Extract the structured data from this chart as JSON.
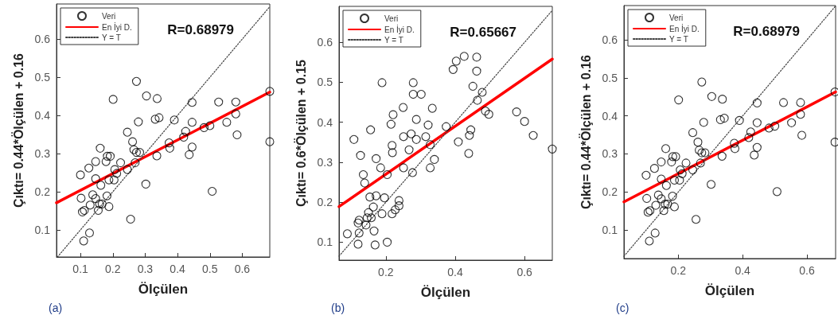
{
  "chart_data": [
    {
      "type": "scatter",
      "xlabel": "Ölçülen",
      "ylabel": "Çıktı= 0.44*Ölçülen + 0.16",
      "annotations": [
        "R=0.68979",
        "(a)"
      ],
      "xlim": [
        0.026,
        0.685
      ],
      "ylim": [
        0.029,
        0.692
      ],
      "xticks": [
        0.1,
        0.2,
        0.3,
        0.4,
        0.5,
        0.6
      ],
      "yticks": [
        0.1,
        0.2,
        0.3,
        0.4,
        0.5,
        0.6
      ],
      "grid": false,
      "legend": "top left",
      "series": [
        {
          "name": "Veri",
          "type": "scatter",
          "marker": "circle",
          "color": "#000000",
          "x": [
            0.685,
            0.685,
            0.273,
            0.201,
            0.304,
            0.337,
            0.331,
            0.343,
            0.279,
            0.39,
            0.445,
            0.445,
            0.527,
            0.58,
            0.58,
            0.584,
            0.552,
            0.5,
            0.482,
            0.425,
            0.419,
            0.445,
            0.436,
            0.374,
            0.376,
            0.336,
            0.302,
            0.507,
            0.255,
            0.245,
            0.261,
            0.265,
            0.273,
            0.283,
            0.269,
            0.245,
            0.224,
            0.212,
            0.206,
            0.183,
            0.192,
            0.179,
            0.161,
            0.147,
            0.126,
            0.1,
            0.147,
            0.163,
            0.188,
            0.204,
            0.138,
            0.147,
            0.102,
            0.13,
            0.159,
            0.182,
            0.188,
            0.155,
            0.106,
            0.112,
            0.167,
            0.128,
            0.11
          ],
          "values": [
            0.463,
            0.331,
            0.489,
            0.442,
            0.451,
            0.444,
            0.39,
            0.394,
            0.383,
            0.388,
            0.434,
            0.382,
            0.435,
            0.435,
            0.404,
            0.349,
            0.382,
            0.373,
            0.368,
            0.358,
            0.343,
            0.317,
            0.297,
            0.328,
            0.314,
            0.294,
            0.22,
            0.201,
            0.128,
            0.356,
            0.331,
            0.31,
            0.303,
            0.303,
            0.276,
            0.258,
            0.276,
            0.248,
            0.258,
            0.293,
            0.293,
            0.279,
            0.314,
            0.279,
            0.262,
            0.244,
            0.234,
            0.217,
            0.231,
            0.231,
            0.192,
            0.182,
            0.183,
            0.165,
            0.168,
            0.189,
            0.161,
            0.151,
            0.147,
            0.151,
            0.168,
            0.092,
            0.071
          ]
        },
        {
          "name": "En İyi D.",
          "type": "line",
          "marker": "none",
          "line_style": "solid",
          "color": "#ff0000",
          "x": [
            0.026,
            0.685
          ],
          "values": [
            0.171,
            0.461
          ]
        },
        {
          "name": "Y = T",
          "type": "line",
          "marker": "none",
          "line_style": "dotted",
          "color": "#404040",
          "x": [
            0.029,
            0.685
          ],
          "values": [
            0.029,
            0.685
          ]
        }
      ]
    },
    {
      "type": "scatter",
      "xlabel": "Ölçülen",
      "ylabel": "Çıktı= 0.6*Ölçülen + 0.15",
      "annotations": [
        "R=0.65667",
        "(b)"
      ],
      "xlim": [
        0.065,
        0.68
      ],
      "ylim": [
        0.055,
        0.69
      ],
      "xticks": [
        0.2,
        0.4,
        0.6
      ],
      "yticks": [
        0.1,
        0.2,
        0.3,
        0.4,
        0.5,
        0.6
      ],
      "grid": false,
      "legend": "top left",
      "series": [
        {
          "name": "Veri",
          "type": "scatter",
          "marker": "circle",
          "color": "#000000",
          "x": [
            0.68,
            0.625,
            0.6,
            0.577,
            0.497,
            0.487,
            0.478,
            0.464,
            0.451,
            0.462,
            0.462,
            0.426,
            0.403,
            0.394,
            0.374,
            0.409,
            0.439,
            0.445,
            0.441,
            0.334,
            0.322,
            0.315,
            0.328,
            0.34,
            0.328,
            0.302,
            0.279,
            0.279,
            0.288,
            0.273,
            0.288,
            0.267,
            0.277,
            0.25,
            0.251,
            0.251,
            0.221,
            0.215,
            0.218,
            0.219,
            0.204,
            0.189,
            0.156,
            0.172,
            0.185,
            0.108,
            0.127,
            0.135,
            0.139,
            0.154,
            0.172,
            0.196,
            0.238,
            0.238,
            0.227,
            0.218,
            0.189,
            0.164,
            0.15,
            0.146,
            0.123,
            0.12,
            0.143,
            0.166,
            0.123,
            0.089,
            0.12,
            0.169,
            0.204,
            0.158
          ],
          "values": [
            0.333,
            0.367,
            0.402,
            0.426,
            0.42,
            0.428,
            0.475,
            0.455,
            0.49,
            0.528,
            0.563,
            0.565,
            0.553,
            0.532,
            0.389,
            0.351,
            0.322,
            0.381,
            0.367,
            0.435,
            0.393,
            0.364,
            0.344,
            0.307,
            0.286,
            0.47,
            0.499,
            0.47,
            0.407,
            0.371,
            0.357,
            0.331,
            0.274,
            0.437,
            0.364,
            0.286,
            0.419,
            0.395,
            0.342,
            0.324,
            0.269,
            0.499,
            0.381,
            0.309,
            0.286,
            0.357,
            0.317,
            0.269,
            0.248,
            0.213,
            0.216,
            0.211,
            0.204,
            0.191,
            0.181,
            0.171,
            0.171,
            0.188,
            0.174,
            0.161,
            0.155,
            0.148,
            0.143,
            0.128,
            0.123,
            0.121,
            0.095,
            0.093,
            0.1,
            0.161
          ]
        },
        {
          "name": "En İyi D.",
          "type": "line",
          "marker": "none",
          "line_style": "solid",
          "color": "#ff0000",
          "x": [
            0.065,
            0.68
          ],
          "values": [
            0.189,
            0.558
          ]
        },
        {
          "name": "Y = T",
          "type": "line",
          "marker": "none",
          "line_style": "dotted",
          "color": "#404040",
          "x": [
            0.065,
            0.68
          ],
          "values": [
            0.065,
            0.68
          ]
        }
      ]
    },
    {
      "type": "scatter",
      "xlabel": "Ölçülen",
      "ylabel": "Çıktı= 0.44*Ölçülen + 0.16",
      "annotations": [
        "R=0.68979",
        "(c)"
      ],
      "xlim": [
        0.031,
        0.689
      ],
      "ylim": [
        0.025,
        0.69
      ],
      "xticks": [
        0.2,
        0.4,
        0.6
      ],
      "yticks": [
        0.1,
        0.2,
        0.3,
        0.4,
        0.5,
        0.6
      ],
      "grid": false,
      "legend": "top left",
      "series": [
        {
          "name": "Veri",
          "type": "scatter",
          "marker": "circle",
          "color": "#000000",
          "x": [
            0.687,
            0.687,
            0.273,
            0.201,
            0.304,
            0.337,
            0.331,
            0.343,
            0.279,
            0.39,
            0.445,
            0.445,
            0.527,
            0.58,
            0.58,
            0.584,
            0.552,
            0.5,
            0.482,
            0.425,
            0.419,
            0.445,
            0.436,
            0.374,
            0.376,
            0.336,
            0.302,
            0.507,
            0.255,
            0.245,
            0.261,
            0.265,
            0.273,
            0.283,
            0.269,
            0.245,
            0.224,
            0.212,
            0.206,
            0.183,
            0.192,
            0.179,
            0.161,
            0.147,
            0.126,
            0.1,
            0.147,
            0.163,
            0.188,
            0.204,
            0.138,
            0.147,
            0.102,
            0.13,
            0.159,
            0.182,
            0.188,
            0.155,
            0.106,
            0.112,
            0.167,
            0.128,
            0.11
          ],
          "values": [
            0.463,
            0.331,
            0.489,
            0.442,
            0.451,
            0.444,
            0.39,
            0.394,
            0.383,
            0.388,
            0.434,
            0.382,
            0.435,
            0.435,
            0.404,
            0.349,
            0.382,
            0.373,
            0.368,
            0.358,
            0.343,
            0.317,
            0.297,
            0.328,
            0.314,
            0.294,
            0.22,
            0.201,
            0.128,
            0.356,
            0.331,
            0.31,
            0.303,
            0.303,
            0.276,
            0.258,
            0.276,
            0.248,
            0.258,
            0.293,
            0.293,
            0.279,
            0.314,
            0.279,
            0.262,
            0.244,
            0.234,
            0.217,
            0.231,
            0.231,
            0.192,
            0.182,
            0.183,
            0.165,
            0.168,
            0.189,
            0.161,
            0.151,
            0.147,
            0.151,
            0.168,
            0.092,
            0.071
          ]
        },
        {
          "name": "En İyi D.",
          "type": "line",
          "marker": "none",
          "line_style": "solid",
          "color": "#ff0000",
          "x": [
            0.031,
            0.689
          ],
          "values": [
            0.174,
            0.463
          ]
        },
        {
          "name": "Y = T",
          "type": "line",
          "marker": "none",
          "line_style": "dotted",
          "color": "#404040",
          "x": [
            0.031,
            0.689
          ],
          "values": [
            0.031,
            0.689
          ]
        }
      ]
    }
  ]
}
